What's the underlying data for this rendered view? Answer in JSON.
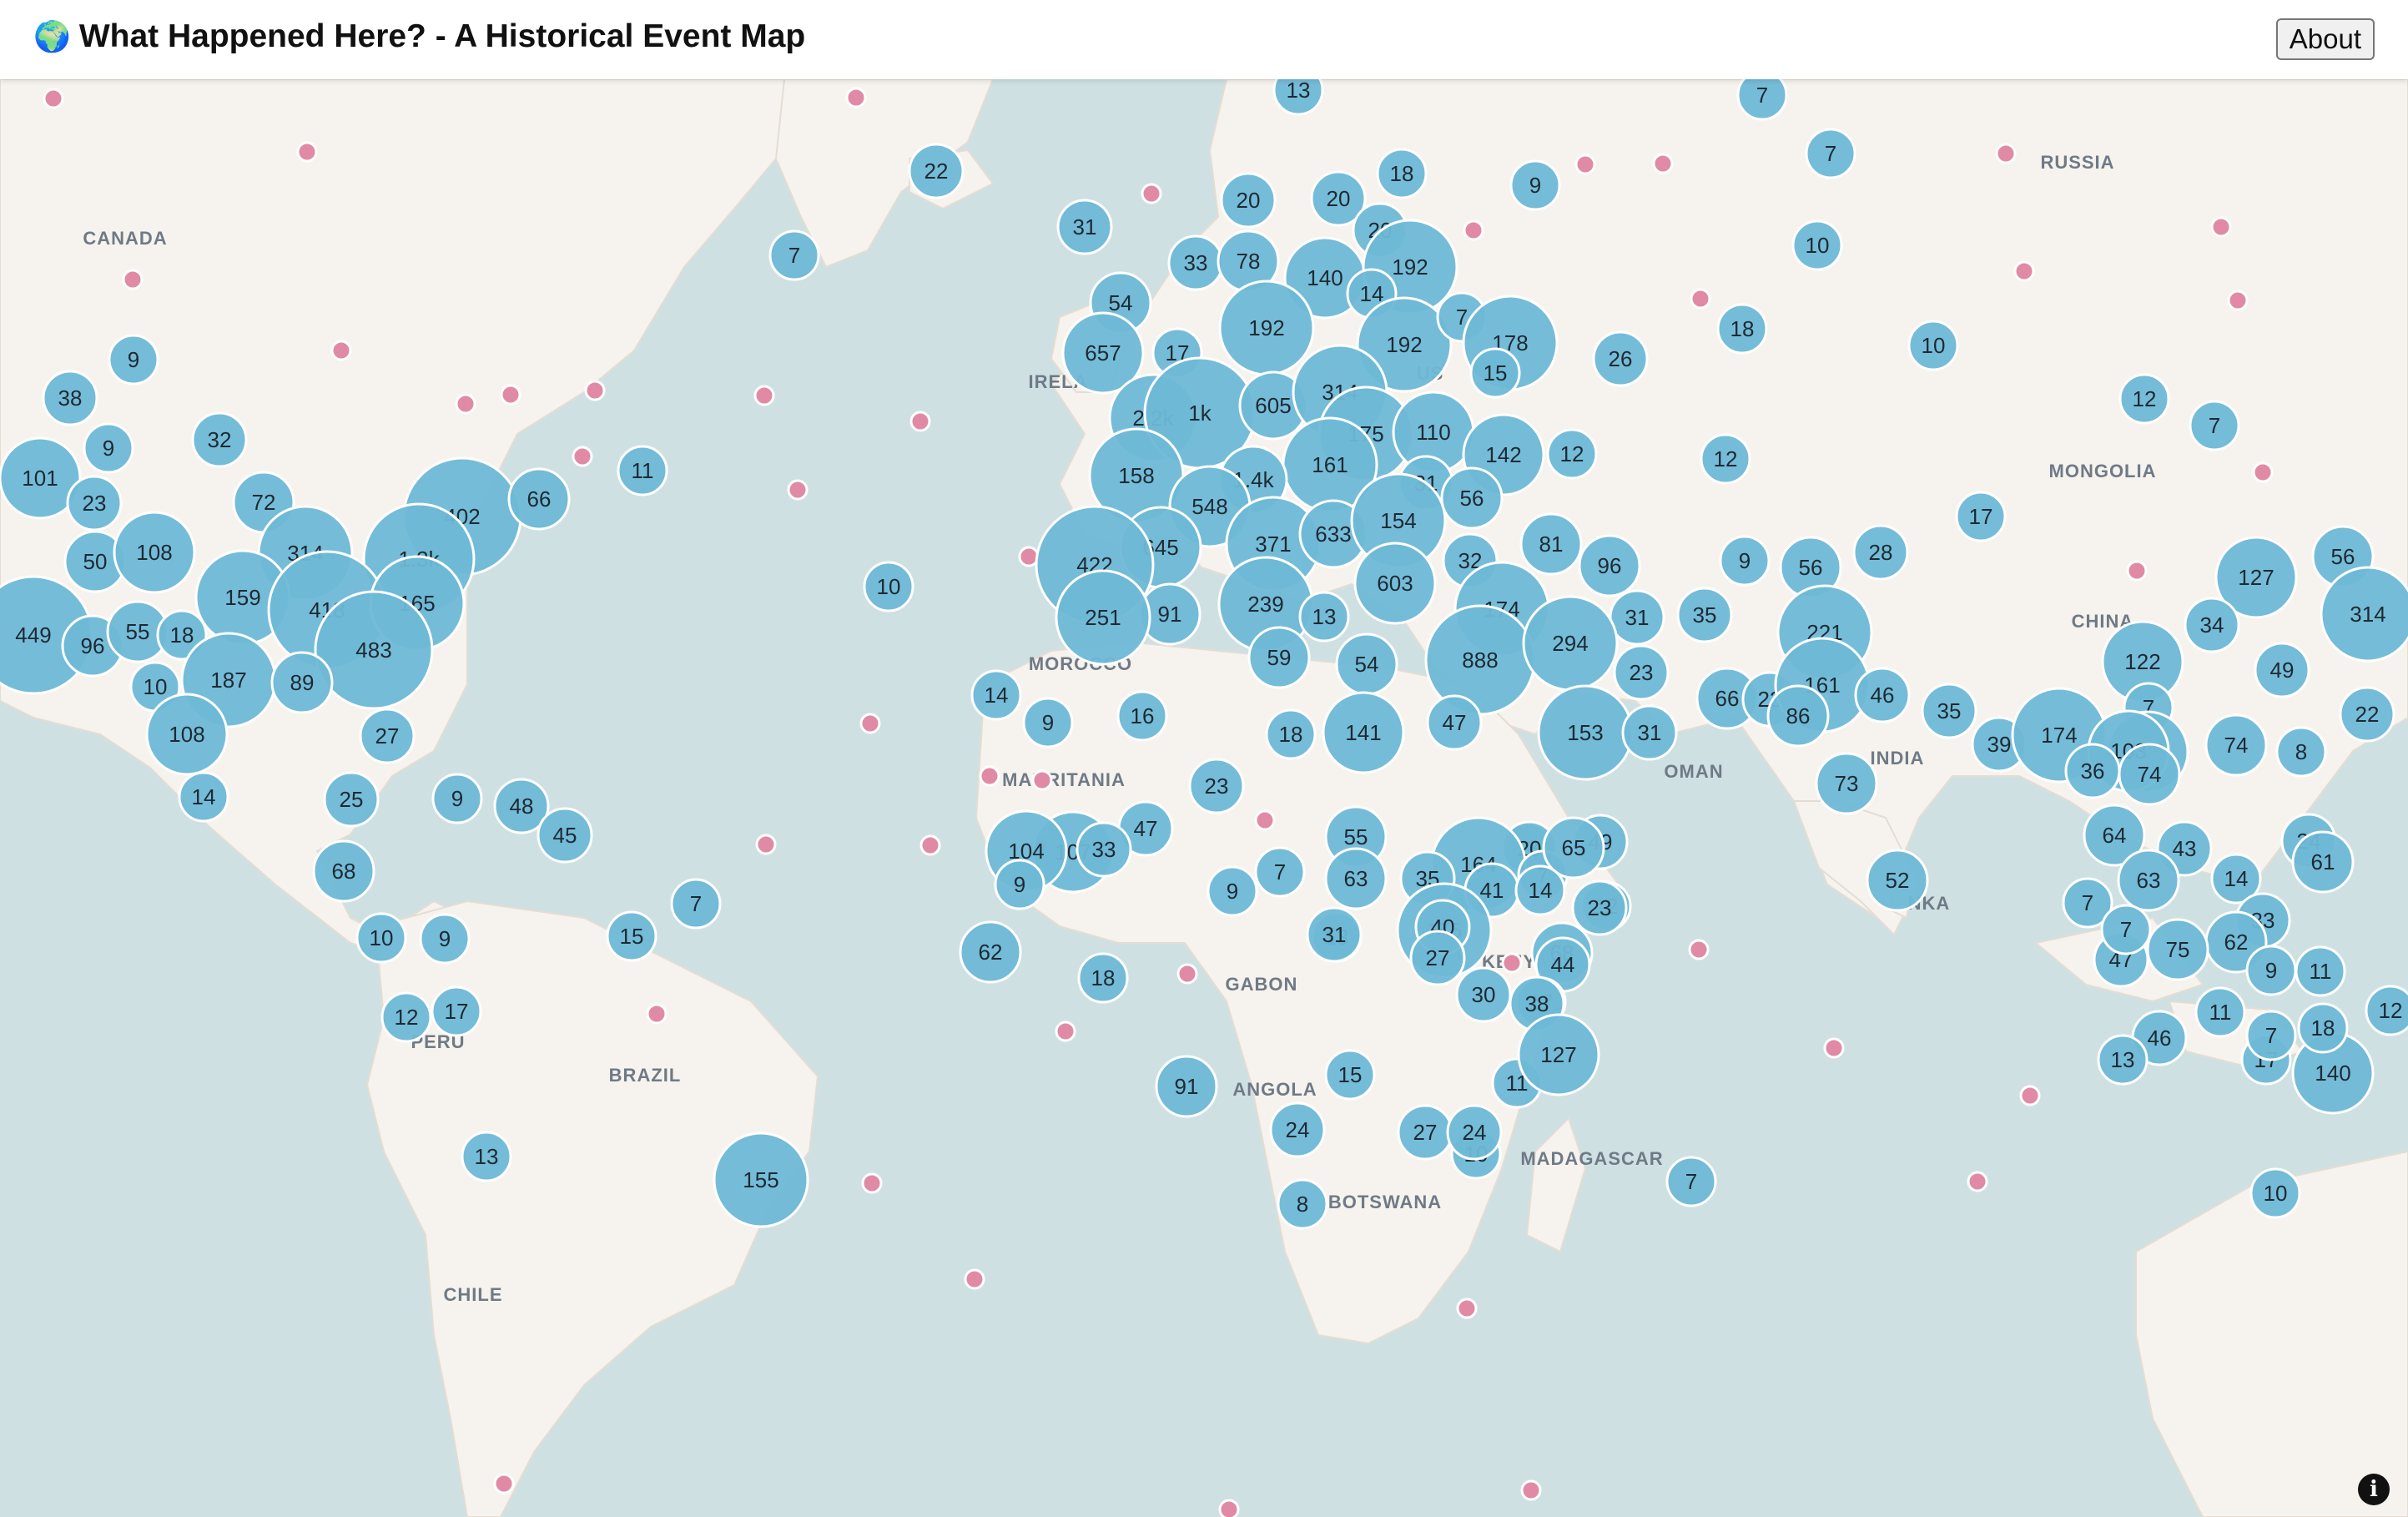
{
  "header": {
    "icon": "globe-icon",
    "title": "What Happened Here? - A Historical Event Map",
    "about_label": "About"
  },
  "info_control": {
    "icon": "info-icon",
    "glyph": "i"
  },
  "colors": {
    "ocean": "#cfe0e3",
    "land": "#f6f3ee",
    "cluster_fill": "#6eb8d6",
    "cluster_stroke": "#ffffff",
    "event_marker": "#e08aa6",
    "place_label": "#6f7a86"
  },
  "place_labels": [
    "CANADA",
    "RUSSIA",
    "IRELA",
    "US",
    "MONGOLIA",
    "CHINA",
    "MOROCCO",
    "MAURITANIA",
    "OMAN",
    "INDIA",
    "NKA",
    "KENYA",
    "GABON",
    "ANGOLA",
    "BOTSWANA",
    "MADAGASCAR",
    "PERU",
    "BRAZIL",
    "CHILE"
  ],
  "clusters": [
    "13",
    "7",
    "7",
    "22",
    "31",
    "20",
    "20",
    "18",
    "9",
    "20",
    "10",
    "7",
    "33",
    "78",
    "140",
    "192",
    "14",
    "192",
    "54",
    "657",
    "17",
    "192",
    "7",
    "178",
    "18",
    "10",
    "26",
    "2.2k",
    "1k",
    "605",
    "314",
    "15",
    "9",
    "38",
    "175",
    "110",
    "12",
    "7",
    "9",
    "101",
    "32",
    "11",
    "158",
    "161",
    "142",
    "12",
    "12",
    "23",
    "72",
    "402",
    "66",
    "1.4k",
    "548",
    "31",
    "56",
    "17",
    "50",
    "108",
    "314",
    "1.3k",
    "371",
    "633",
    "154",
    "56",
    "127",
    "56",
    "314",
    "449",
    "159",
    "418",
    "165",
    "645",
    "603",
    "32",
    "81",
    "96",
    "9",
    "221",
    "28",
    "10",
    "96",
    "55",
    "18",
    "483",
    "422",
    "91",
    "239",
    "13",
    "174",
    "31",
    "35",
    "34",
    "49",
    "122",
    "10",
    "187",
    "89",
    "251",
    "59",
    "54",
    "888",
    "294",
    "23",
    "66",
    "23",
    "161",
    "46",
    "35",
    "7",
    "146",
    "74",
    "8",
    "22",
    "108",
    "27",
    "14",
    "9",
    "16",
    "18",
    "141",
    "47",
    "153",
    "31",
    "86",
    "39",
    "174",
    "103",
    "36",
    "73",
    "74",
    "14",
    "9",
    "48",
    "25",
    "45",
    "55",
    "13",
    "107",
    "20",
    "49",
    "104",
    "47",
    "23",
    "64",
    "24",
    "43",
    "68",
    "164",
    "7",
    "65",
    "52",
    "63",
    "14",
    "33",
    "7",
    "63",
    "35",
    "41",
    "14",
    "12",
    "7",
    "61",
    "9",
    "10",
    "9",
    "9",
    "13",
    "175",
    "33",
    "47",
    "18",
    "31",
    "40",
    "68",
    "62",
    "7",
    "62",
    "7",
    "44",
    "12",
    "11",
    "75",
    "27",
    "30",
    "17",
    "46",
    "23",
    "12",
    "15",
    "17",
    "17",
    "38",
    "11",
    "140",
    "13",
    "7",
    "24",
    "27",
    "10",
    "11",
    "9",
    "13",
    "155",
    "7",
    "91",
    "127",
    "15",
    "18",
    "24",
    "8",
    "10"
  ],
  "event_markers": 45
}
